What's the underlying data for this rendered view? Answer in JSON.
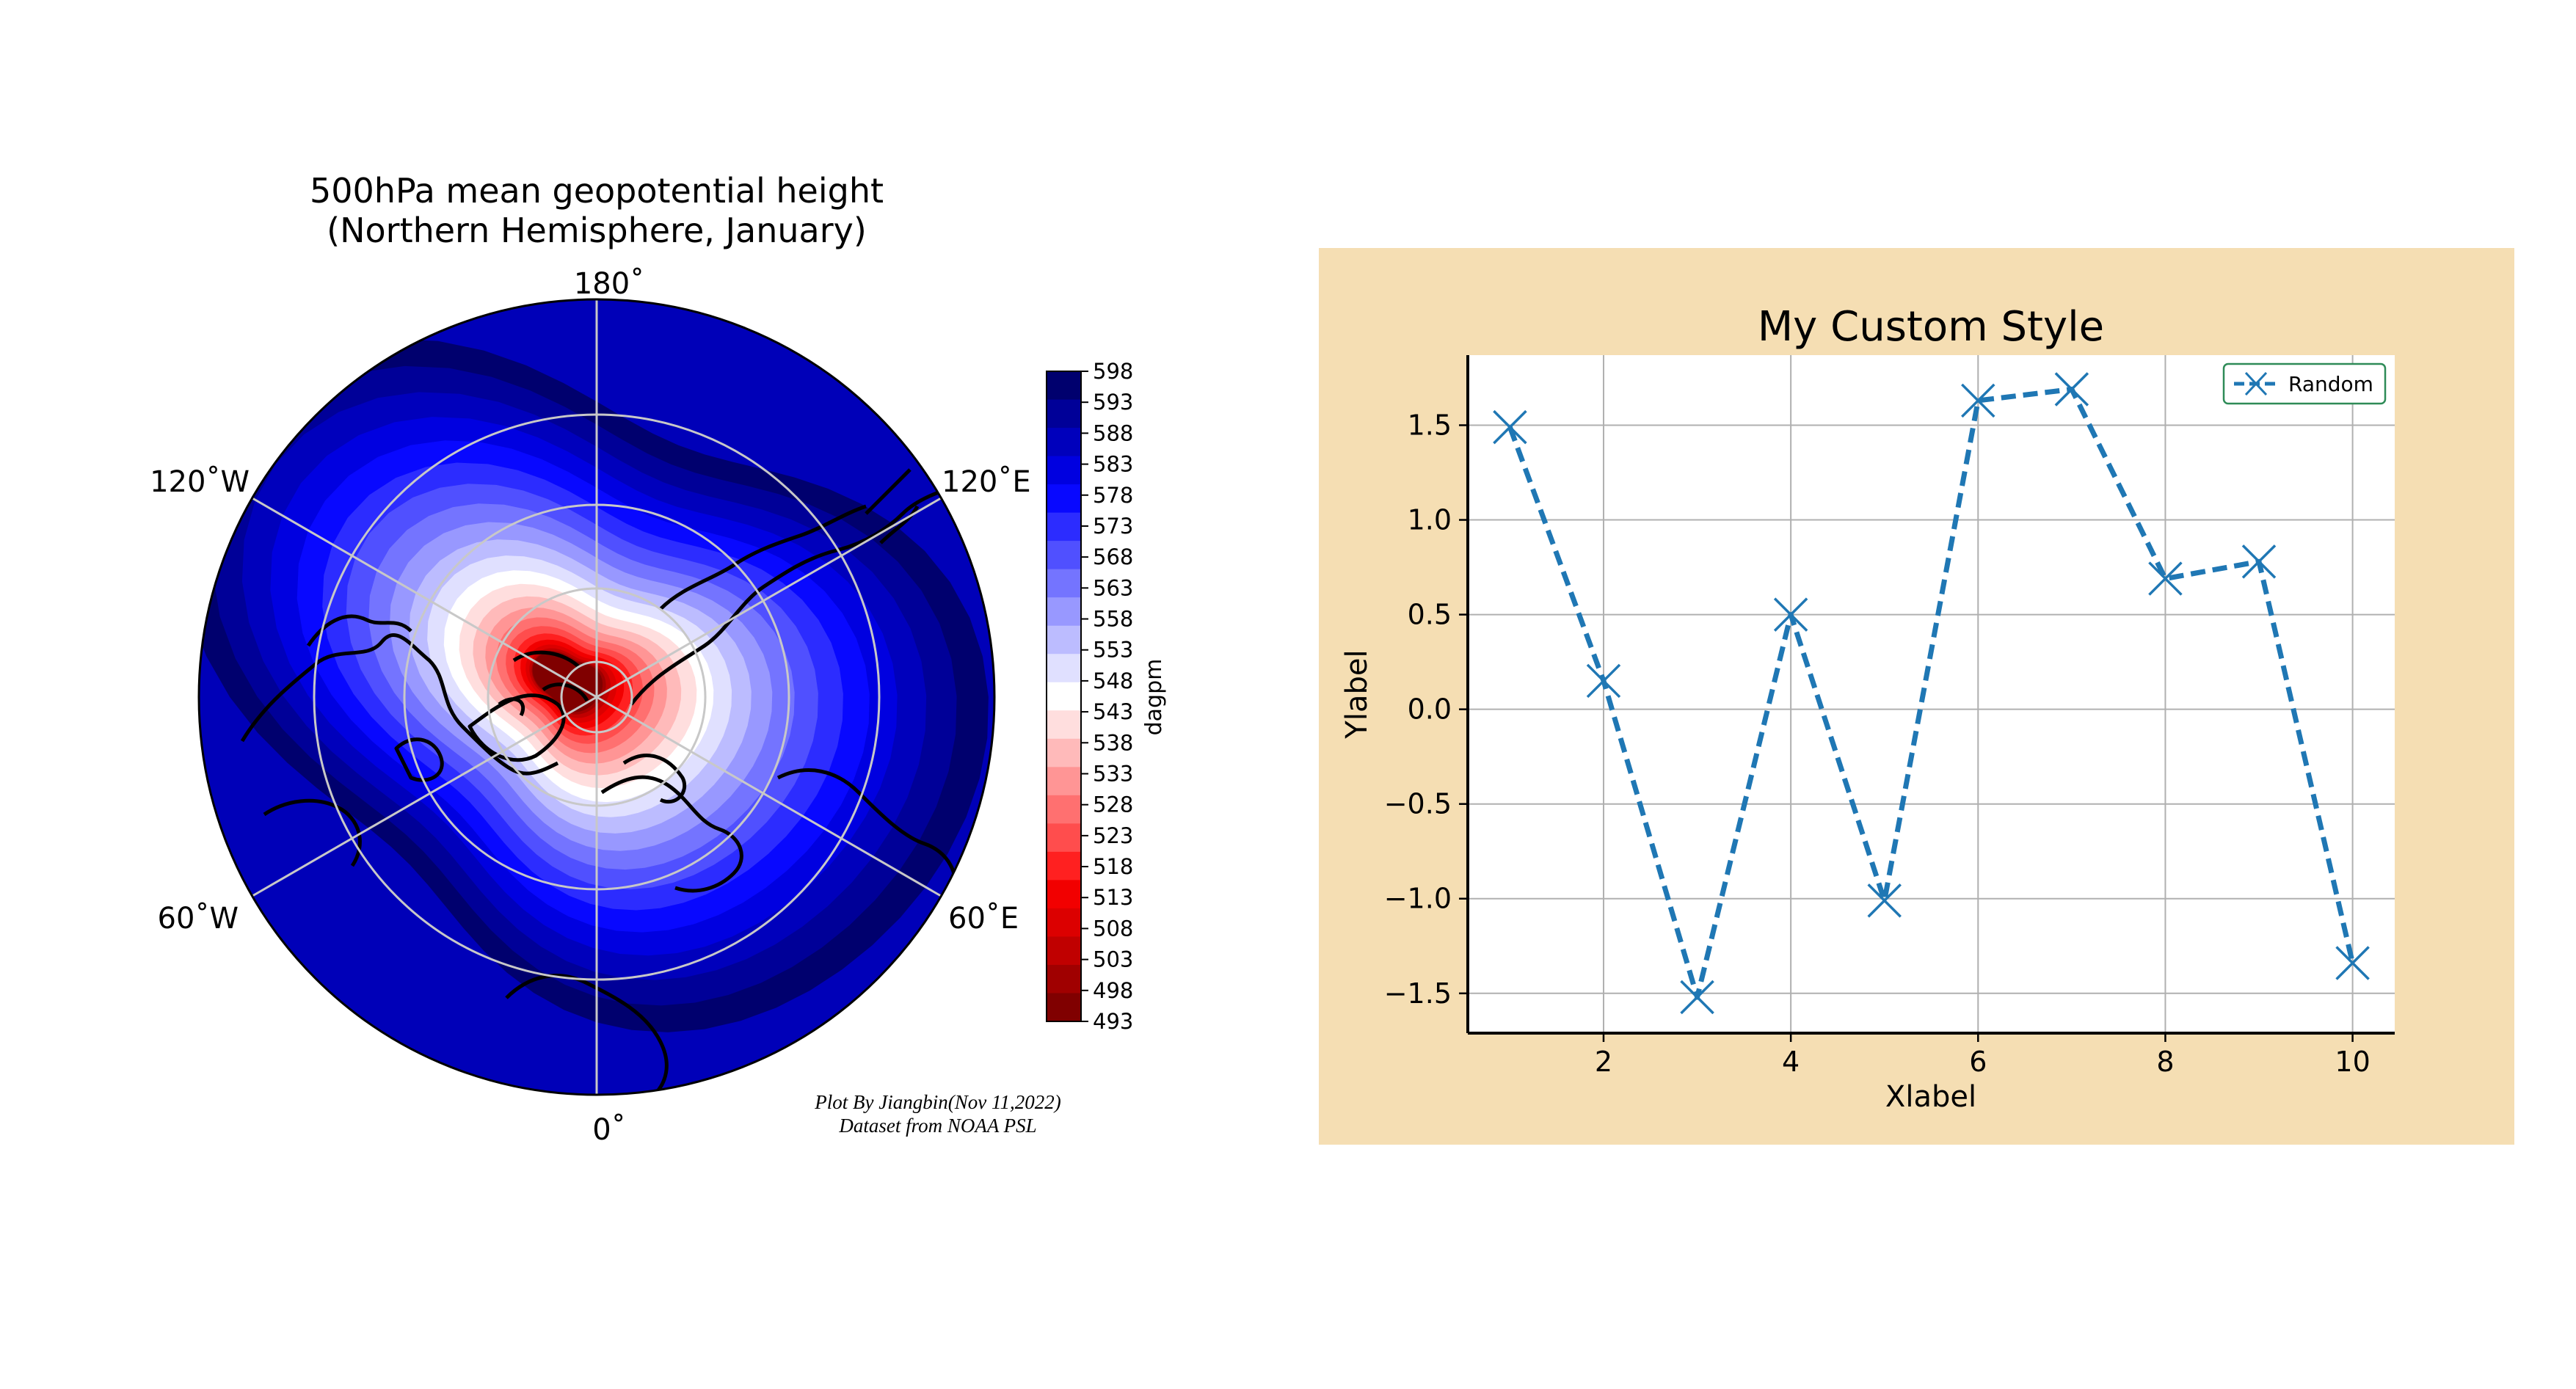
{
  "chart_data": [
    {
      "type": "heatmap",
      "projection": "north-polar-stereographic",
      "title": "500hPa mean geopotential height\n(Northern Hemisphere, January)",
      "colorbar_label": "dagpm",
      "colorbar_ticks": [
        493,
        498,
        503,
        508,
        513,
        518,
        523,
        528,
        533,
        538,
        543,
        548,
        553,
        558,
        563,
        568,
        573,
        578,
        583,
        588,
        593,
        598
      ],
      "colormap": [
        "#800000",
        "#a00000",
        "#c00000",
        "#dc0000",
        "#f20000",
        "#ff2020",
        "#ff4d4d",
        "#ff7070",
        "#ff9595",
        "#ffbaba",
        "#ffdede",
        "#ffffff",
        "#e0e0ff",
        "#bcbcff",
        "#9898ff",
        "#7474ff",
        "#5050ff",
        "#2c2cff",
        "#0808ff",
        "#0000e0",
        "#0000bc",
        "#000098",
        "#00006e"
      ],
      "longitude_labels": [
        "180˚",
        "120˚E",
        "60˚E",
        "0˚",
        "60˚W",
        "120˚W"
      ],
      "latitude_circles": [
        80,
        60,
        40
      ],
      "grid": true,
      "annotation": [
        "Plot By Jiangbin(Nov 11,2022)",
        "Dataset from NOAA PSL"
      ]
    },
    {
      "type": "line",
      "title": "My Custom Style",
      "xlabel": "Xlabel",
      "ylabel": "Ylabel",
      "x": [
        1,
        2,
        3,
        4,
        5,
        6,
        7,
        8,
        9,
        10
      ],
      "series": [
        {
          "name": "Random",
          "values": [
            1.49,
            0.15,
            -1.52,
            0.5,
            -1.01,
            1.63,
            1.69,
            0.69,
            0.78,
            -1.34
          ],
          "color": "#1f77b4",
          "linestyle": "dashed",
          "marker": "x"
        }
      ],
      "xticks": [
        "2",
        "4",
        "6",
        "8",
        "10"
      ],
      "yticks": [
        "−1.5",
        "−1.0",
        "−0.5",
        "0.0",
        "0.5",
        "1.0",
        "1.5"
      ],
      "xlim": [
        0.55,
        10.45
      ],
      "ylim": [
        -1.71,
        1.87
      ],
      "grid": true,
      "legend": "top-right",
      "figure_background": "#f5deb3",
      "legend_edge": "#2e8b57"
    }
  ]
}
